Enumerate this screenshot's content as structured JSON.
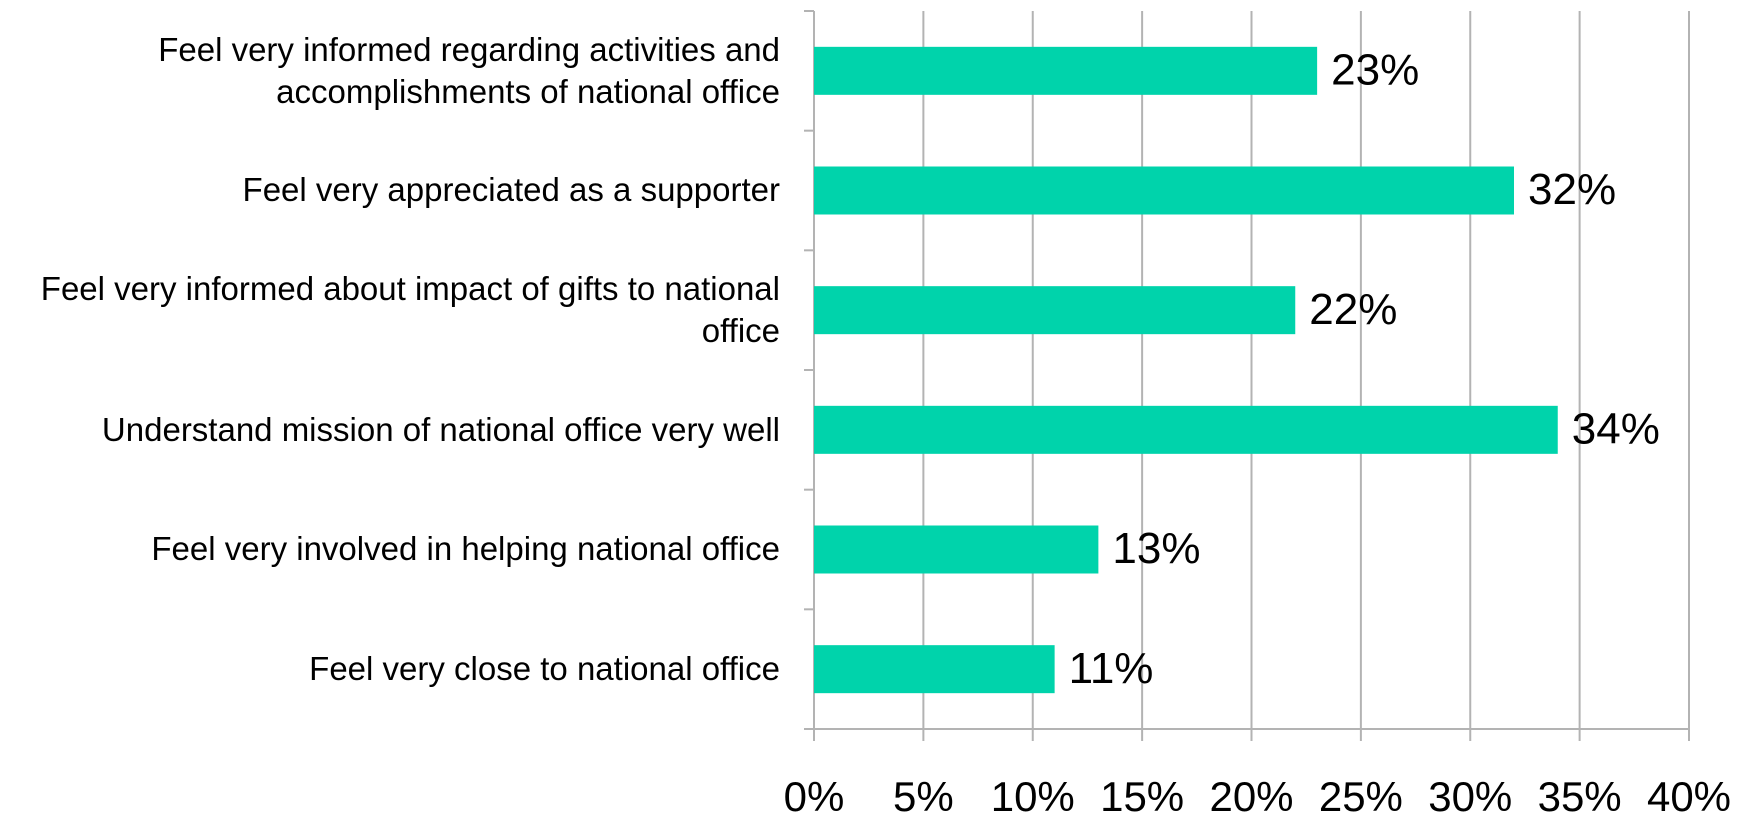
{
  "chart_data": {
    "type": "hbar",
    "categories": [
      "Feel very informed regarding activities and accomplishments of national office",
      "Feel very appreciated as a supporter",
      "Feel very informed about impact of gifts to national office",
      "Understand mission of national office very well",
      "Feel very involved in helping national office",
      "Feel very close to national office"
    ],
    "values": [
      23,
      32,
      22,
      34,
      13,
      11
    ],
    "value_labels": [
      "23%",
      "32%",
      "22%",
      "34%",
      "13%",
      "11%"
    ],
    "color": "#00d3ab",
    "xlim": [
      0,
      40
    ],
    "xticks": [
      {
        "value": 0,
        "label": "0%"
      },
      {
        "value": 5,
        "label": "5%"
      },
      {
        "value": 10,
        "label": "10%"
      },
      {
        "value": 15,
        "label": "15%"
      },
      {
        "value": 20,
        "label": "20%"
      },
      {
        "value": 25,
        "label": "25%"
      },
      {
        "value": 30,
        "label": "30%"
      },
      {
        "value": 35,
        "label": "35%"
      },
      {
        "value": 40,
        "label": "40%"
      }
    ],
    "grid": true
  }
}
